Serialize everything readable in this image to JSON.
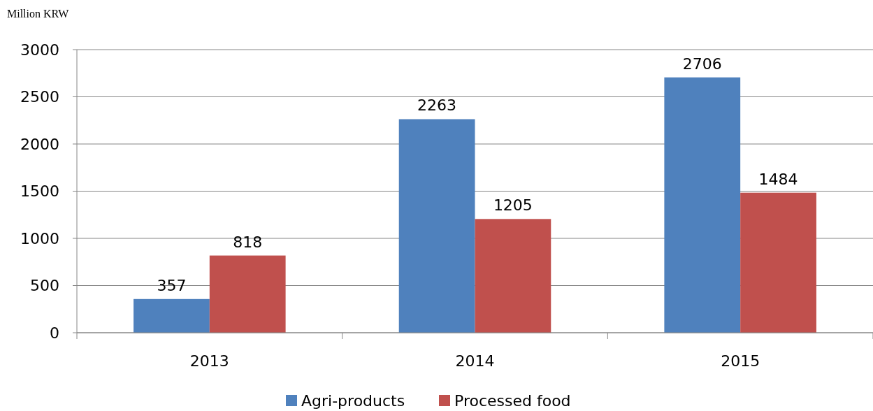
{
  "chart_data": {
    "type": "bar",
    "ylabel": "Million KRW",
    "categories": [
      "2013",
      "2014",
      "2015"
    ],
    "series": [
      {
        "name": "Agri-products",
        "color": "#4f81bd",
        "values": [
          357,
          2263,
          2706
        ]
      },
      {
        "name": "Processed food",
        "color": "#c0504d",
        "values": [
          818,
          1205,
          1484
        ]
      }
    ],
    "ylim": [
      0,
      3000
    ],
    "yticks": [
      0,
      500,
      1000,
      1500,
      2000,
      2500,
      3000
    ],
    "grid": "y",
    "legend": "bottom",
    "data_labels": true
  }
}
